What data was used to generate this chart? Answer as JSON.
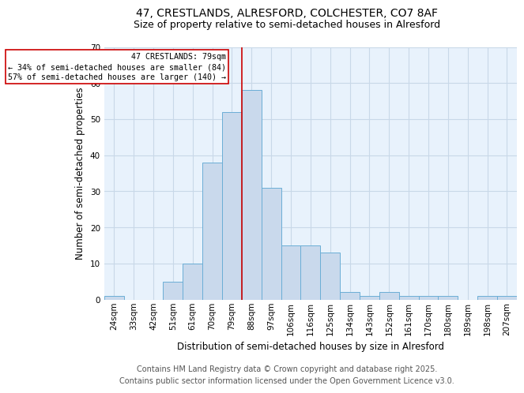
{
  "title_line1": "47, CRESTLANDS, ALRESFORD, COLCHESTER, CO7 8AF",
  "title_line2": "Size of property relative to semi-detached houses in Alresford",
  "xlabel": "Distribution of semi-detached houses by size in Alresford",
  "ylabel": "Number of semi-detached properties",
  "categories": [
    "24sqm",
    "33sqm",
    "42sqm",
    "51sqm",
    "61sqm",
    "70sqm",
    "79sqm",
    "88sqm",
    "97sqm",
    "106sqm",
    "116sqm",
    "125sqm",
    "134sqm",
    "143sqm",
    "152sqm",
    "161sqm",
    "170sqm",
    "180sqm",
    "189sqm",
    "198sqm",
    "207sqm"
  ],
  "values": [
    1,
    0,
    0,
    5,
    10,
    38,
    52,
    58,
    31,
    15,
    15,
    13,
    2,
    1,
    2,
    1,
    1,
    1,
    0,
    1,
    1
  ],
  "bar_color": "#c9d9ec",
  "bar_edge_color": "#6baed6",
  "red_line_color": "#cc0000",
  "annotation_text": "47 CRESTLANDS: 79sqm\n← 34% of semi-detached houses are smaller (84)\n57% of semi-detached houses are larger (140) →",
  "annotation_box_color": "#ffffff",
  "annotation_box_edge": "#cc0000",
  "highlight_index": 6,
  "ylim": [
    0,
    70
  ],
  "yticks": [
    0,
    10,
    20,
    30,
    40,
    50,
    60,
    70
  ],
  "bg_color": "#ddeeff",
  "plot_bg_color": "#e8f2fc",
  "fig_bg_color": "#ffffff",
  "grid_color": "#c8d8e8",
  "title_fontsize": 10,
  "subtitle_fontsize": 9,
  "axis_label_fontsize": 8.5,
  "tick_fontsize": 7.5,
  "footer_fontsize": 7,
  "footer_line1": "Contains HM Land Registry data © Crown copyright and database right 2025.",
  "footer_line2": "Contains public sector information licensed under the Open Government Licence v3.0."
}
